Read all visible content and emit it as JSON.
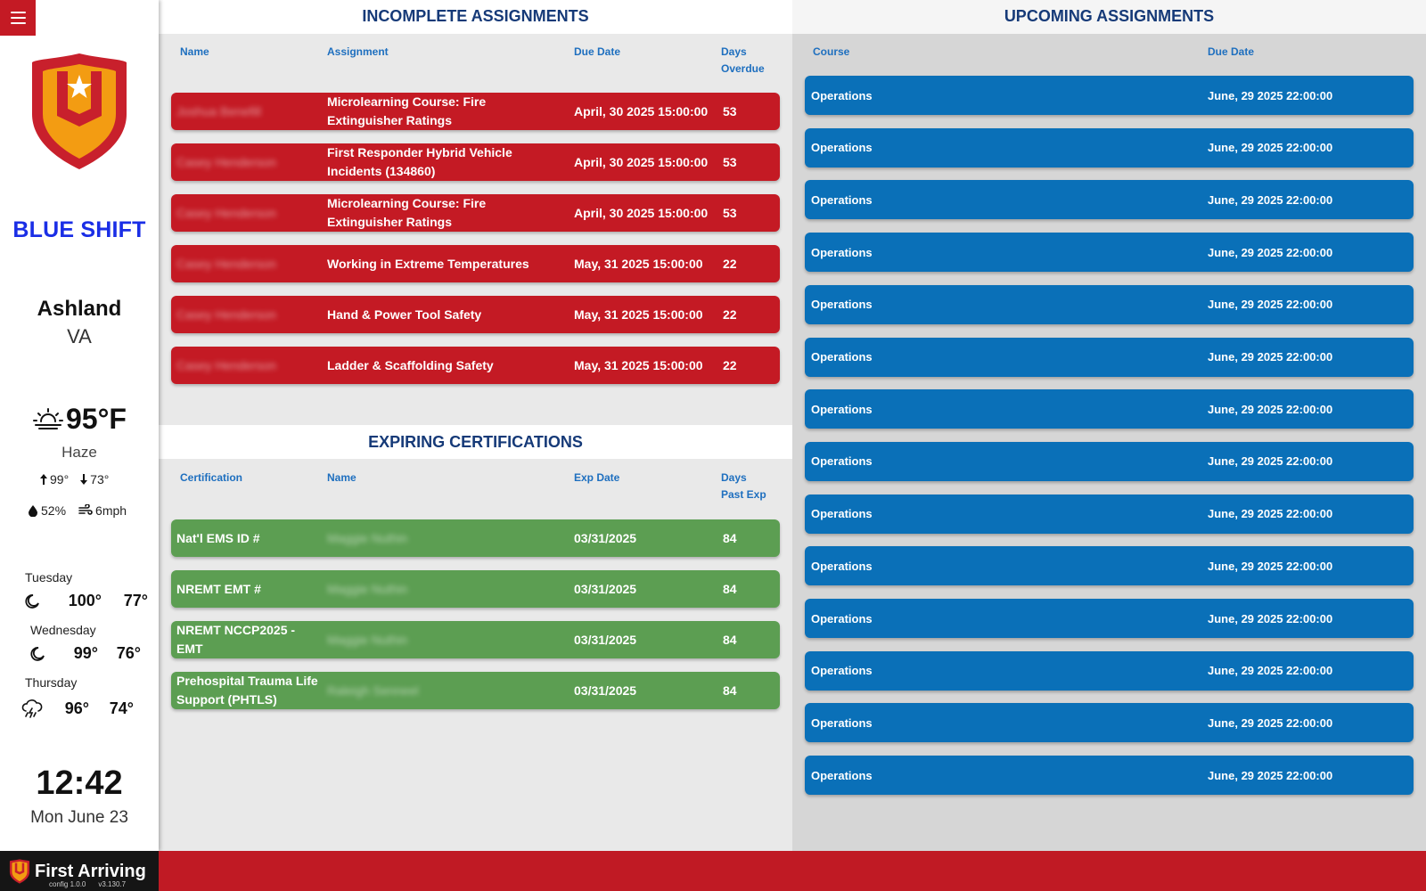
{
  "sidebar": {
    "shift_name": "BLUE SHIFT",
    "city": "Ashland",
    "state": "VA",
    "weather": {
      "temp": "95°F",
      "condition": "Haze",
      "high": "99°",
      "low": "73°",
      "humidity": "52%",
      "wind": "6mph",
      "icon": "haze-sun-icon"
    },
    "forecast": [
      {
        "day": "Tuesday",
        "hi": "100°",
        "lo": "77°",
        "icon": "moon-icon"
      },
      {
        "day": "Wednesday",
        "hi": "99°",
        "lo": "76°",
        "icon": "moon-icon"
      },
      {
        "day": "Thursday",
        "hi": "96°",
        "lo": "74°",
        "icon": "thunderstorm-icon"
      }
    ],
    "time": "12:42",
    "date": "Mon June 23"
  },
  "incomplete": {
    "title": "INCOMPLETE ASSIGNMENTS",
    "headers": {
      "name": "Name",
      "assignment": "Assignment",
      "due": "Due Date",
      "days1": "Days",
      "days2": "Overdue"
    },
    "rows": [
      {
        "name": "Joshua Benefill",
        "assignment": "Microlearning Course: Fire Extinguisher Ratings",
        "due": "April, 30 2025 15:00:00",
        "days": "53"
      },
      {
        "name": "Casey Henderson",
        "assignment": "First Responder Hybrid Vehicle Incidents (134860)",
        "due": "April, 30 2025 15:00:00",
        "days": "53"
      },
      {
        "name": "Casey Henderson",
        "assignment": "Microlearning Course: Fire Extinguisher Ratings",
        "due": "April, 30 2025 15:00:00",
        "days": "53"
      },
      {
        "name": "Casey Henderson",
        "assignment": "Working in Extreme Temperatures",
        "due": "May, 31 2025 15:00:00",
        "days": "22"
      },
      {
        "name": "Casey Henderson",
        "assignment": "Hand & Power Tool Safety",
        "due": "May, 31 2025 15:00:00",
        "days": "22"
      },
      {
        "name": "Casey Henderson",
        "assignment": "Ladder & Scaffolding Safety",
        "due": "May, 31 2025 15:00:00",
        "days": "22"
      }
    ]
  },
  "expiring": {
    "title": "EXPIRING CERTIFICATIONS",
    "headers": {
      "cert": "Certification",
      "name": "Name",
      "exp": "Exp Date",
      "days1": "Days",
      "days2": "Past Exp"
    },
    "rows": [
      {
        "cert": "Nat'l EMS ID #",
        "name": "Maggie Nuthin",
        "exp": "03/31/2025",
        "days": "84"
      },
      {
        "cert": "NREMT EMT #",
        "name": "Maggie Nuthin",
        "exp": "03/31/2025",
        "days": "84"
      },
      {
        "cert": "NREMT NCCP2025 - EMT",
        "name": "Maggie Nuthin",
        "exp": "03/31/2025",
        "days": "84"
      },
      {
        "cert": "Prehospital Trauma Life Support (PHTLS)",
        "name": "Raleigh Senneel",
        "exp": "03/31/2025",
        "days": "84"
      }
    ]
  },
  "upcoming": {
    "title": "UPCOMING ASSIGNMENTS",
    "headers": {
      "course": "Course",
      "due": "Due Date"
    },
    "rows": [
      {
        "course": "Operations",
        "due": "June, 29 2025 22:00:00"
      },
      {
        "course": "Operations",
        "due": "June, 29 2025 22:00:00"
      },
      {
        "course": "Operations",
        "due": "June, 29 2025 22:00:00"
      },
      {
        "course": "Operations",
        "due": "June, 29 2025 22:00:00"
      },
      {
        "course": "Operations",
        "due": "June, 29 2025 22:00:00"
      },
      {
        "course": "Operations",
        "due": "June, 29 2025 22:00:00"
      },
      {
        "course": "Operations",
        "due": "June, 29 2025 22:00:00"
      },
      {
        "course": "Operations",
        "due": "June, 29 2025 22:00:00"
      },
      {
        "course": "Operations",
        "due": "June, 29 2025 22:00:00"
      },
      {
        "course": "Operations",
        "due": "June, 29 2025 22:00:00"
      },
      {
        "course": "Operations",
        "due": "June, 29 2025 22:00:00"
      },
      {
        "course": "Operations",
        "due": "June, 29 2025 22:00:00"
      },
      {
        "course": "Operations",
        "due": "June, 29 2025 22:00:00"
      },
      {
        "course": "Operations",
        "due": "June, 29 2025 22:00:00"
      }
    ]
  },
  "footer": {
    "brand": "First Arriving",
    "config_version": "config 1.0.0",
    "app_version": "v3.130.7"
  },
  "colors": {
    "accent_red": "#c41a24",
    "row_green": "#5c9e52",
    "row_blue": "#0a70b8",
    "shift_blue": "#1a2ee6",
    "title_navy": "#163a78"
  }
}
